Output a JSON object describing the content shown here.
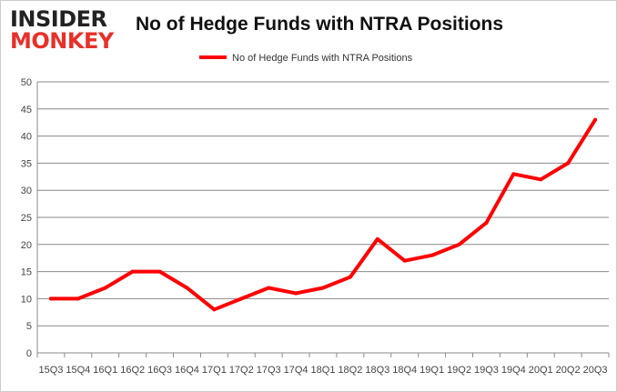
{
  "logo": {
    "line1": "INSIDER",
    "line2": "MONKEY"
  },
  "chart_data": {
    "type": "line",
    "title": "No of Hedge Funds with NTRA Positions",
    "categories": [
      "15Q3",
      "15Q4",
      "16Q1",
      "16Q2",
      "16Q3",
      "16Q4",
      "17Q1",
      "17Q2",
      "17Q3",
      "17Q4",
      "18Q1",
      "18Q2",
      "18Q3",
      "18Q4",
      "19Q1",
      "19Q2",
      "19Q3",
      "19Q4",
      "20Q1",
      "20Q2",
      "20Q3"
    ],
    "series": [
      {
        "name": "No of Hedge Funds with NTRA Positions",
        "color": "#ff0000",
        "values": [
          10,
          10,
          12,
          15,
          15,
          12,
          8,
          10,
          12,
          11,
          12,
          14,
          21,
          17,
          18,
          20,
          24,
          33,
          32,
          35,
          43
        ]
      }
    ],
    "ylim": [
      0,
      50
    ],
    "yticks": [
      0,
      5,
      10,
      15,
      20,
      25,
      30,
      35,
      40,
      45,
      50
    ],
    "grid": true,
    "legend": "top-center",
    "xlabel": "",
    "ylabel": ""
  }
}
